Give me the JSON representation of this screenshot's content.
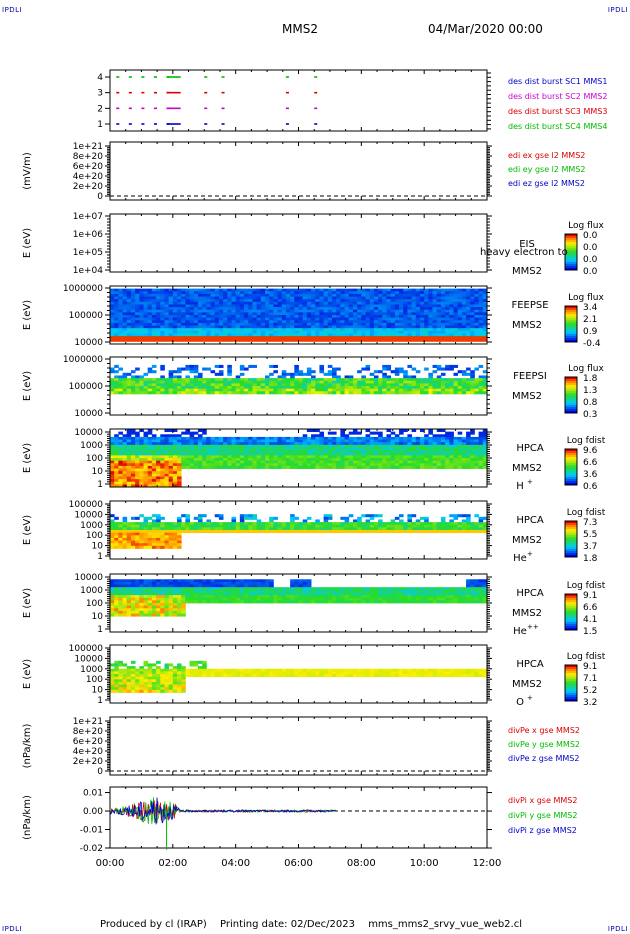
{
  "corner_label": "IPDLI",
  "header": {
    "title": "MMS2",
    "date": "04/Mar/2020 00:00"
  },
  "footer": {
    "produced": "Produced by cl (IRAP)",
    "printing": "Printing date: 02/Dec/2023",
    "file": "mms_mms2_srvy_vue_web2.cl"
  },
  "chart_data": [
    {
      "type": "scatter",
      "panel": "burst-availability",
      "yticks": [
        "1",
        "2",
        "3",
        "4"
      ],
      "legend": [
        {
          "label": "des dist burst SC1 MMS1",
          "color": "#0000cc"
        },
        {
          "label": "des dist burst SC2 MMS2",
          "color": "#cc00cc"
        },
        {
          "label": "des dist burst SC3 MMS3",
          "color": "#dd0000"
        },
        {
          "label": "des dist burst SC4 MMS4",
          "color": "#00bb00"
        }
      ],
      "segments_hours": [
        0.2,
        0.6,
        1.0,
        1.4,
        1.8,
        3.0,
        3.55,
        5.6,
        6.5
      ],
      "long_segment_hours": [
        1.8,
        2.25
      ]
    },
    {
      "type": "line",
      "panel": "edi-efield",
      "ylabel": "(mV/m)",
      "yticks": [
        "0",
        "2e+20",
        "4e+20",
        "6e+20",
        "8e+20",
        "1e+21"
      ],
      "legend": [
        {
          "label": "edi ex gse l2 MMS2",
          "color": "#dd0000"
        },
        {
          "label": "edi ey gse l2 MMS2",
          "color": "#00bb00"
        },
        {
          "label": "edi ez gse l2 MMS2",
          "color": "#0000cc"
        }
      ]
    },
    {
      "type": "heatmap",
      "panel": "eis",
      "ylabel": "E (eV)",
      "yticks": [
        "1e+04",
        "1e+05",
        "1e+06",
        "1e+07"
      ],
      "instrument": "EIS",
      "species_overlap": "heavy electron to",
      "spacecraft": "MMS2",
      "colorbar": {
        "title": "Log flux",
        "ticks": [
          "0.0",
          "0.0",
          "0.0",
          "0.0"
        ]
      }
    },
    {
      "type": "heatmap",
      "panel": "feepse",
      "ylabel": "E (eV)",
      "yticks": [
        "10000",
        "100000",
        "1000000"
      ],
      "instrument": "FEEPSE",
      "spacecraft": "MMS2",
      "colorbar": {
        "title": "Log flux",
        "ticks": [
          "3.4",
          "2.1",
          "0.9",
          "-0.4"
        ]
      }
    },
    {
      "type": "heatmap",
      "panel": "feepsi",
      "ylabel": "E (eV)",
      "yticks": [
        "10000",
        "100000",
        "1000000"
      ],
      "instrument": "FEEPSI",
      "spacecraft": "MMS2",
      "colorbar": {
        "title": "Log flux",
        "ticks": [
          "1.8",
          "1.3",
          "0.8",
          "0.3"
        ]
      }
    },
    {
      "type": "heatmap",
      "panel": "hpca-h",
      "ylabel": "E (eV)",
      "yticks": [
        "1",
        "10",
        "100",
        "1000",
        "10000"
      ],
      "instrument": "HPCA",
      "spacecraft": "MMS2",
      "species": "H",
      "charge": "+",
      "colorbar": {
        "title": "Log fdist",
        "ticks": [
          "9.6",
          "6.6",
          "3.6",
          "0.6"
        ]
      }
    },
    {
      "type": "heatmap",
      "panel": "hpca-he1",
      "ylabel": "E (eV)",
      "yticks": [
        "1",
        "10",
        "100",
        "1000",
        "10000",
        "100000"
      ],
      "instrument": "HPCA",
      "spacecraft": "MMS2",
      "species": "He",
      "charge": "+",
      "colorbar": {
        "title": "Log fdist",
        "ticks": [
          "7.3",
          "5.5",
          "3.7",
          "1.8"
        ]
      }
    },
    {
      "type": "heatmap",
      "panel": "hpca-he2",
      "ylabel": "E (eV)",
      "yticks": [
        "1",
        "10",
        "100",
        "1000",
        "10000"
      ],
      "instrument": "HPCA",
      "spacecraft": "MMS2",
      "species": "He",
      "charge": "++",
      "colorbar": {
        "title": "Log fdist",
        "ticks": [
          "9.1",
          "6.6",
          "4.1",
          "1.5"
        ]
      }
    },
    {
      "type": "heatmap",
      "panel": "hpca-o",
      "ylabel": "E (eV)",
      "yticks": [
        "1",
        "10",
        "100",
        "1000",
        "10000",
        "100000"
      ],
      "instrument": "HPCA",
      "spacecraft": "MMS2",
      "species": "O",
      "charge": "+",
      "colorbar": {
        "title": "Log fdist",
        "ticks": [
          "9.1",
          "7.1",
          "5.2",
          "3.2"
        ]
      }
    },
    {
      "type": "line",
      "panel": "divpe",
      "ylabel": "(nPa/km)",
      "yticks": [
        "0",
        "2e+20",
        "4e+20",
        "6e+20",
        "8e+20",
        "1e+21"
      ],
      "legend": [
        {
          "label": "divPe x gse MMS2",
          "color": "#dd0000"
        },
        {
          "label": "divPe y gse MMS2",
          "color": "#00bb00"
        },
        {
          "label": "divPe z gse MMS2",
          "color": "#0000cc"
        }
      ]
    },
    {
      "type": "line",
      "panel": "divpi",
      "ylabel": "(nPa/km)",
      "yticks": [
        "-0.02",
        "-0.01",
        "0.00",
        "0.01"
      ],
      "ylim": [
        -0.02,
        0.013
      ],
      "data_extent_hours": [
        0,
        7.2
      ],
      "spike": {
        "x_hours": 1.8,
        "y": -0.021,
        "color": "#00bb00"
      },
      "legend": [
        {
          "label": "divPi x gse MMS2",
          "color": "#dd0000"
        },
        {
          "label": "divPi y gse MMS2",
          "color": "#00bb00"
        },
        {
          "label": "divPi z gse MMS2",
          "color": "#0000cc"
        }
      ]
    }
  ],
  "time_axis": {
    "ticks": [
      "00:00",
      "02:00",
      "04:00",
      "06:00",
      "08:00",
      "10:00",
      "12:00"
    ],
    "range_hours": [
      0,
      12
    ]
  }
}
